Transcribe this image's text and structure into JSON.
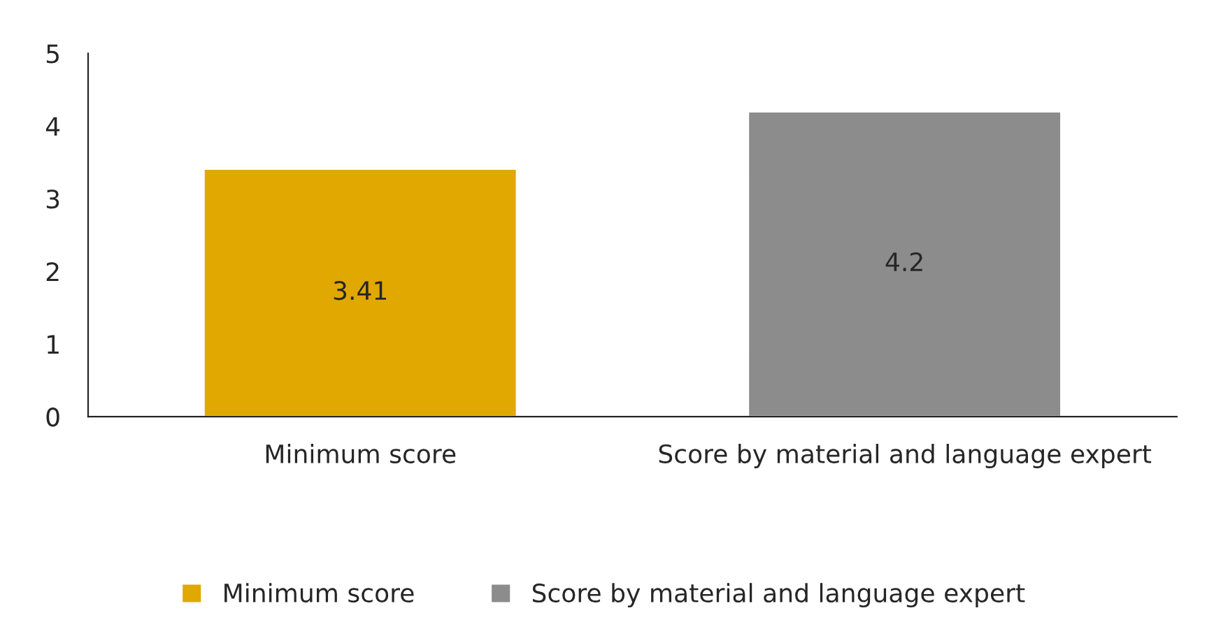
{
  "chart_data": {
    "type": "bar",
    "categories": [
      "Minimum score",
      "Score by material and language expert"
    ],
    "series": [
      {
        "name": "Minimum score",
        "color": "#e0a800",
        "values": [
          3.41,
          null
        ]
      },
      {
        "name": "Score by material and language expert",
        "color": "#8c8c8c",
        "values": [
          null,
          4.2
        ]
      }
    ],
    "ylim": [
      0,
      5
    ],
    "yticks": [
      0,
      1,
      2,
      3,
      4,
      5
    ],
    "grid": false,
    "legend": "bottom",
    "data_labels": true
  }
}
